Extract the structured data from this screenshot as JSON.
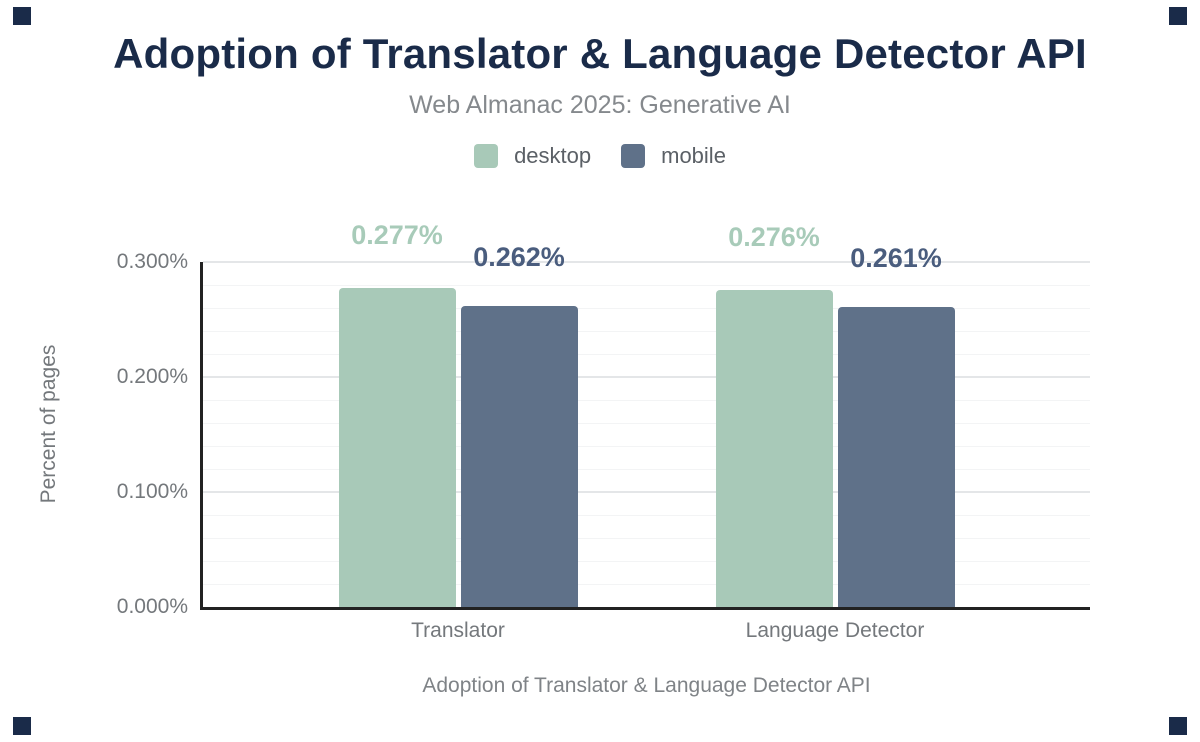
{
  "figure": {
    "title": "Adoption of Translator & Language Detector API",
    "subtitle": "Web Almanac 2025: Generative AI",
    "caption": "Adoption of Translator & Language Detector API"
  },
  "legend": {
    "items": [
      {
        "label": "desktop",
        "color": "#a8c9b8"
      },
      {
        "label": "mobile",
        "color": "#5f7189"
      }
    ]
  },
  "y_axis": {
    "title": "Percent of pages",
    "ticks": [
      {
        "label": "0.300%",
        "value": 0.3
      },
      {
        "label": "0.200%",
        "value": 0.2
      },
      {
        "label": "0.100%",
        "value": 0.1
      },
      {
        "label": "0.000%",
        "value": 0.0
      }
    ]
  },
  "x_axis": {
    "categories": [
      "Translator",
      "Language Detector"
    ]
  },
  "chart_data": {
    "type": "bar",
    "title": "Adoption of Translator & Language Detector API",
    "subtitle": "Web Almanac 2025: Generative AI",
    "xlabel": "Adoption of Translator & Language Detector API",
    "ylabel": "Percent of pages",
    "categories": [
      "Translator",
      "Language Detector"
    ],
    "series": [
      {
        "name": "desktop",
        "color": "#a8c9b8",
        "label_color": "#a8cbb9",
        "values": [
          0.277,
          0.276
        ],
        "labels": [
          "0.277%",
          "0.276%"
        ]
      },
      {
        "name": "mobile",
        "color": "#5f7189",
        "label_color": "#4a5d7e",
        "values": [
          0.262,
          0.261
        ],
        "labels": [
          "0.262%",
          "0.261%"
        ]
      }
    ],
    "ylim": [
      0,
      0.3
    ],
    "ytick_step": 0.1,
    "minor_grid_step": 0.02,
    "major_gridlines": [
      0.1,
      0.2,
      0.3
    ],
    "grid": true,
    "legend_position": "top"
  },
  "colors": {
    "title": "#1a2b49",
    "subtitle": "#85898d",
    "legend_text": "#5b6066",
    "axis_text": "#74787c",
    "caption_text": "#7f8387",
    "axis_line": "#222222",
    "major_grid": "#e4e6e8",
    "minor_grid": "#f3f4f5",
    "corner_mark": "#1a2b49",
    "background": "#ffffff"
  }
}
